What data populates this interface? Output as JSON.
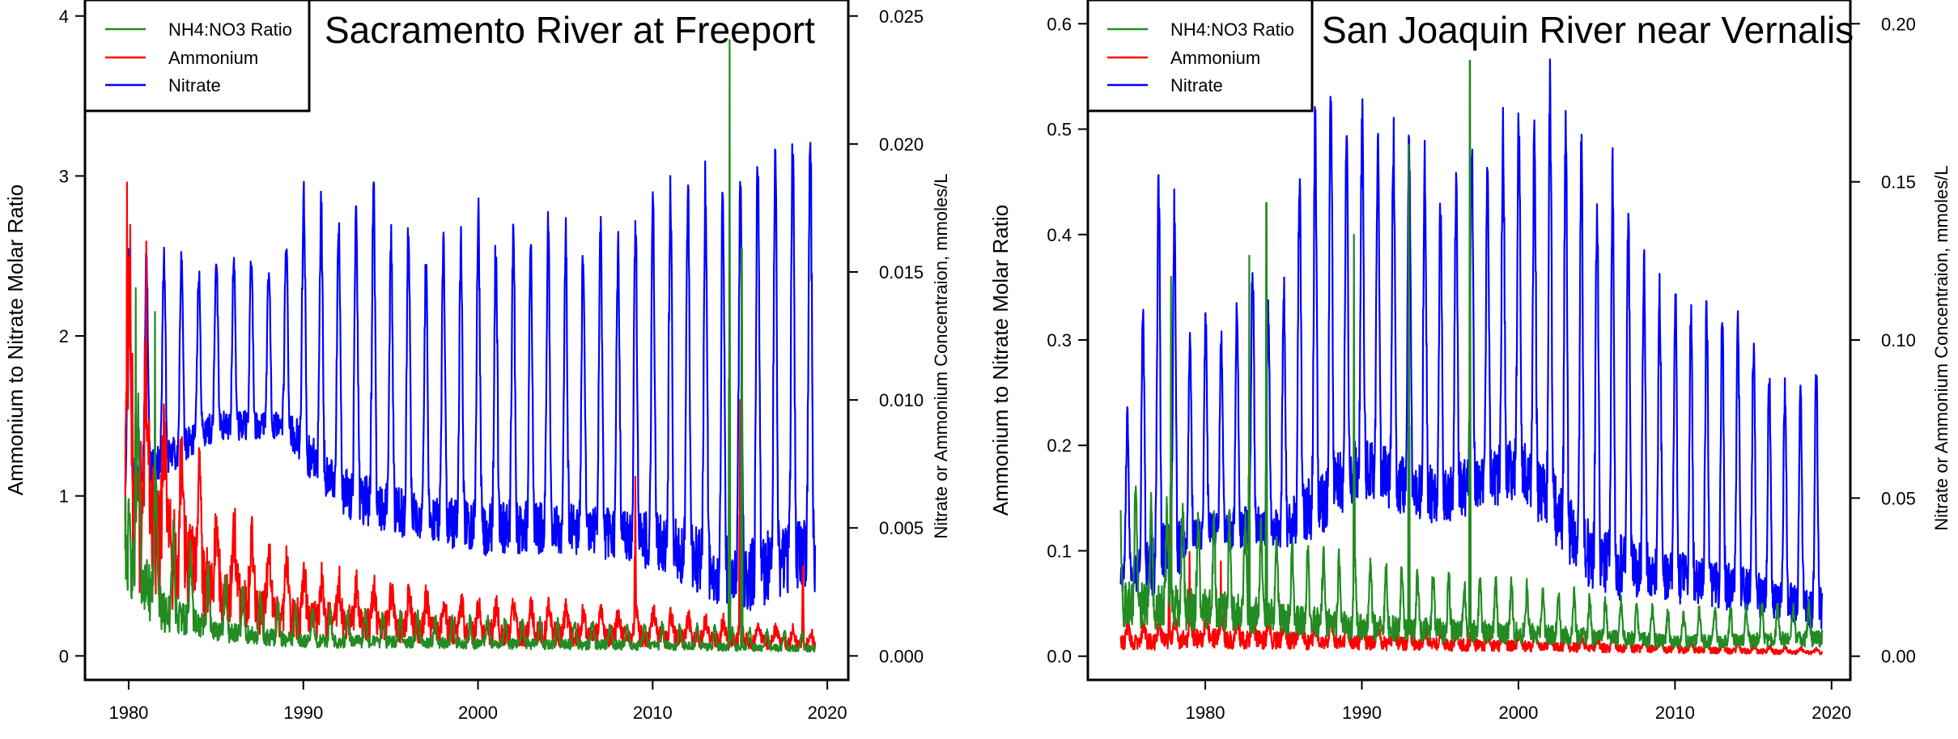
{
  "chart_data": [
    {
      "type": "line",
      "title": "Sacramento River at Freeport",
      "ylabel": "Ammonium to Nitrate Molar Ratio",
      "y2label": "Nitrate or Ammonium Concentraion, mmoles/L",
      "xlim": [
        1977.5,
        2021.2
      ],
      "ylim": [
        -0.15,
        4.1
      ],
      "y2lim": [
        -0.0009375,
        0.025625
      ],
      "xticks": [
        1980,
        1990,
        2000,
        2010,
        2020
      ],
      "yticks": [
        0,
        1,
        2,
        3,
        4
      ],
      "y2ticks": [
        0.0,
        0.005,
        0.01,
        0.015,
        0.02,
        0.025
      ],
      "ytick_labels": [
        "0",
        "1",
        "2",
        "3",
        "4"
      ],
      "y2tick_labels": [
        "0.000",
        "0.005",
        "0.010",
        "0.015",
        "0.020",
        "0.025"
      ],
      "xtick_labels": [
        "1980",
        "1990",
        "2000",
        "2010",
        "2020"
      ],
      "legend": {
        "placement": "top-left",
        "entries": [
          {
            "label": "NH4:NO3 Ratio",
            "color": "#228B22"
          },
          {
            "label": "Ammonium",
            "color": "#FF0000"
          },
          {
            "label": "Nitrate",
            "color": "#0000FF"
          }
        ]
      },
      "series_params": {
        "start": 1979.8,
        "end": 2019.3,
        "nitrate_peaks": [
          [
            1980.0,
            0.0155
          ],
          [
            1981.0,
            0.0155
          ],
          [
            1982.0,
            0.0155
          ],
          [
            1983.0,
            0.0155
          ],
          [
            1984.0,
            0.015
          ],
          [
            1985.0,
            0.0155
          ],
          [
            1986.0,
            0.0155
          ],
          [
            1987.0,
            0.0153
          ],
          [
            1988.0,
            0.015
          ],
          [
            1989.0,
            0.016
          ],
          [
            1990.0,
            0.018
          ],
          [
            1991.0,
            0.0175
          ],
          [
            1992.0,
            0.017
          ],
          [
            1993.0,
            0.0175
          ],
          [
            1994.0,
            0.018
          ],
          [
            1995.0,
            0.016
          ],
          [
            1996.0,
            0.0165
          ],
          [
            1997.0,
            0.015
          ],
          [
            1998.0,
            0.016
          ],
          [
            1999.0,
            0.016
          ],
          [
            2000.0,
            0.017
          ],
          [
            2001.0,
            0.016
          ],
          [
            2002.0,
            0.0165
          ],
          [
            2003.0,
            0.0163
          ],
          [
            2004.0,
            0.0165
          ],
          [
            2005.0,
            0.0163
          ],
          [
            2006.0,
            0.016
          ],
          [
            2007.0,
            0.0163
          ],
          [
            2008.0,
            0.016
          ],
          [
            2009.0,
            0.0165
          ],
          [
            2010.0,
            0.0175
          ],
          [
            2011.0,
            0.0182
          ],
          [
            2012.0,
            0.0183
          ],
          [
            2013.0,
            0.0185
          ],
          [
            2014.0,
            0.0183
          ],
          [
            2015.0,
            0.0185
          ],
          [
            2016.0,
            0.0195
          ],
          [
            2017.0,
            0.02
          ],
          [
            2018.0,
            0.02
          ],
          [
            2019.0,
            0.0205
          ]
        ],
        "nitrate_troughs": [
          [
            1980.5,
            0.007
          ],
          [
            1985.0,
            0.009
          ],
          [
            1989.0,
            0.009
          ],
          [
            1992.0,
            0.0065
          ],
          [
            1996.0,
            0.0055
          ],
          [
            2000.0,
            0.005
          ],
          [
            2005.0,
            0.005
          ],
          [
            2010.0,
            0.0045
          ],
          [
            2015.0,
            0.003
          ],
          [
            2019.0,
            0.004
          ]
        ],
        "ammonium_base": [
          [
            1979.8,
            0.01
          ],
          [
            1980.5,
            0.0085
          ],
          [
            1982.0,
            0.006
          ],
          [
            1985.0,
            0.0035
          ],
          [
            1990.0,
            0.002
          ],
          [
            2000.0,
            0.0013
          ],
          [
            2010.0,
            0.0011
          ],
          [
            2019.3,
            0.0006
          ]
        ],
        "ratio_base": [
          [
            1979.8,
            1.4
          ],
          [
            1980.5,
            0.9
          ],
          [
            1982.0,
            0.5
          ],
          [
            1985.0,
            0.28
          ],
          [
            1990.0,
            0.17
          ],
          [
            2000.0,
            0.14
          ],
          [
            2010.0,
            0.12
          ],
          [
            2019.3,
            0.08
          ]
        ],
        "ratio_spikes": [
          [
            2014.4,
            3.85
          ],
          [
            2015.1,
            2.55
          ],
          [
            1981.5,
            2.15
          ],
          [
            1980.4,
            2.3
          ]
        ],
        "ammonium_spikes": [
          [
            1979.9,
            0.0185
          ],
          [
            1981.0,
            0.0162
          ],
          [
            2009.0,
            0.007
          ],
          [
            2015.0,
            0.01
          ],
          [
            2018.6,
            0.0035
          ]
        ]
      }
    },
    {
      "type": "line",
      "title": "San Joaquin River near Vernalis",
      "ylabel": "Ammonium to Nitrate Molar Ratio",
      "y2label": "Nitrate or Ammonium Concentraion, mmoles/L",
      "xlim": [
        1972.5,
        2021.2
      ],
      "ylim": [
        -0.0225,
        0.6225
      ],
      "y2lim": [
        -0.0075,
        0.2075
      ],
      "xticks": [
        1980,
        1990,
        2000,
        2010,
        2020
      ],
      "yticks": [
        0.0,
        0.1,
        0.2,
        0.3,
        0.4,
        0.5,
        0.6
      ],
      "y2ticks": [
        0.0,
        0.05,
        0.1,
        0.15,
        0.2
      ],
      "ytick_labels": [
        "0.0",
        "0.1",
        "0.2",
        "0.3",
        "0.4",
        "0.5",
        "0.6"
      ],
      "y2tick_labels": [
        "0.00",
        "0.05",
        "0.10",
        "0.15",
        "0.20"
      ],
      "xtick_labels": [
        "1980",
        "1990",
        "2000",
        "2010",
        "2020"
      ],
      "legend": {
        "placement": "top-left",
        "entries": [
          {
            "label": "NH4:NO3 Ratio",
            "color": "#228B22"
          },
          {
            "label": "Ammonium",
            "color": "#FF0000"
          },
          {
            "label": "Nitrate",
            "color": "#0000FF"
          }
        ]
      },
      "series_params": {
        "start": 1974.6,
        "end": 2019.4,
        "nitrate_peaks": [
          [
            1975.0,
            0.075
          ],
          [
            1976.0,
            0.11
          ],
          [
            1977.0,
            0.15
          ],
          [
            1978.0,
            0.14
          ],
          [
            1979.0,
            0.1
          ],
          [
            1980.0,
            0.105
          ],
          [
            1981.0,
            0.1
          ],
          [
            1982.0,
            0.11
          ],
          [
            1983.0,
            0.125
          ],
          [
            1984.0,
            0.11
          ],
          [
            1985.0,
            0.115
          ],
          [
            1986.0,
            0.15
          ],
          [
            1987.0,
            0.17
          ],
          [
            1988.0,
            0.18
          ],
          [
            1989.0,
            0.165
          ],
          [
            1990.0,
            0.17
          ],
          [
            1991.0,
            0.16
          ],
          [
            1992.0,
            0.165
          ],
          [
            1993.0,
            0.16
          ],
          [
            1994.0,
            0.155
          ],
          [
            1995.0,
            0.14
          ],
          [
            1996.0,
            0.15
          ],
          [
            1997.0,
            0.16
          ],
          [
            1998.0,
            0.155
          ],
          [
            1999.0,
            0.165
          ],
          [
            2000.0,
            0.17
          ],
          [
            2001.0,
            0.165
          ],
          [
            2002.0,
            0.178
          ],
          [
            2003.0,
            0.17
          ],
          [
            2004.0,
            0.16
          ],
          [
            2005.0,
            0.145
          ],
          [
            2006.0,
            0.15
          ],
          [
            2007.0,
            0.14
          ],
          [
            2008.0,
            0.125
          ],
          [
            2009.0,
            0.115
          ],
          [
            2010.0,
            0.115
          ],
          [
            2011.0,
            0.11
          ],
          [
            2012.0,
            0.11
          ],
          [
            2013.0,
            0.11
          ],
          [
            2014.0,
            0.105
          ],
          [
            2015.0,
            0.1
          ],
          [
            2016.0,
            0.09
          ],
          [
            2017.0,
            0.085
          ],
          [
            2018.0,
            0.085
          ],
          [
            2019.0,
            0.09
          ]
        ],
        "nitrate_troughs": [
          [
            1975.0,
            0.025
          ],
          [
            1980.0,
            0.04
          ],
          [
            1985.0,
            0.04
          ],
          [
            1990.0,
            0.06
          ],
          [
            1995.0,
            0.05
          ],
          [
            2000.0,
            0.06
          ],
          [
            2005.0,
            0.03
          ],
          [
            2010.0,
            0.025
          ],
          [
            2015.0,
            0.02
          ],
          [
            2019.0,
            0.015
          ]
        ],
        "ammonium_base": [
          [
            1974.6,
            0.006
          ],
          [
            1980.0,
            0.008
          ],
          [
            1990.0,
            0.006
          ],
          [
            2000.0,
            0.0045
          ],
          [
            2010.0,
            0.003
          ],
          [
            2019.4,
            0.0015
          ]
        ],
        "ratio_base": [
          [
            1974.6,
            0.09
          ],
          [
            1980.0,
            0.08
          ],
          [
            1990.0,
            0.05
          ],
          [
            2000.0,
            0.04
          ],
          [
            2010.0,
            0.025
          ],
          [
            2019.4,
            0.03
          ]
        ],
        "ratio_spikes": [
          [
            1983.9,
            0.43
          ],
          [
            1993.0,
            0.485
          ],
          [
            1996.9,
            0.565
          ],
          [
            1982.8,
            0.38
          ],
          [
            1977.8,
            0.36
          ],
          [
            1989.5,
            0.4
          ]
        ],
        "ammonium_spikes": [
          [
            1977.7,
            0.04
          ],
          [
            1979.0,
            0.033
          ],
          [
            1981.0,
            0.03
          ]
        ]
      }
    }
  ]
}
